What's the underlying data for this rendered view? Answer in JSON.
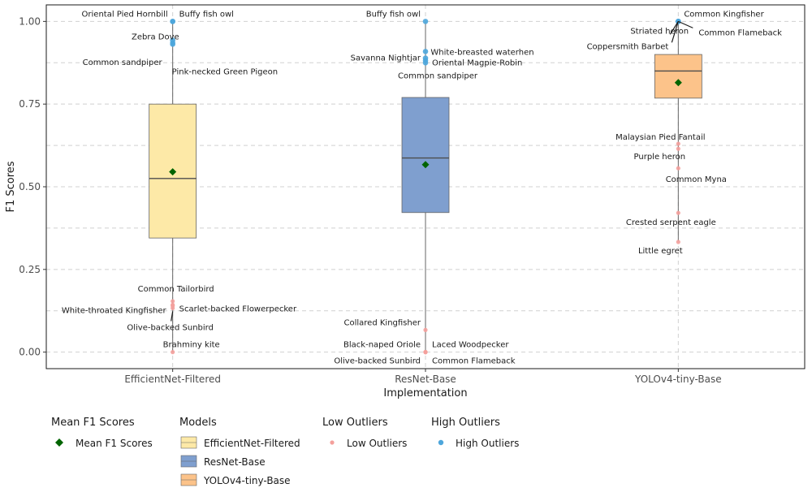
{
  "chart_data": {
    "type": "box",
    "xlabel": "Implementation",
    "ylabel": "F1 Scores",
    "ylim": [
      -0.05,
      1.05
    ],
    "yticks": [
      0.0,
      0.25,
      0.5,
      0.75,
      1.0
    ],
    "ytick_labels": [
      "0.00",
      "0.25",
      "0.50",
      "0.75",
      "1.00"
    ],
    "grid": "dashed",
    "categories": [
      "EfficientNet-Filtered",
      "ResNet-Base",
      "YOLOv4-tiny-Base"
    ],
    "colors": {
      "EfficientNet-Filtered": "#fde9a7",
      "ResNet-Base": "#7f9fcf",
      "YOLOv4-tiny-Base": "#fcc38a",
      "mean": "#006400",
      "low_outlier": "#f4a09c",
      "high_outlier": "#4da6db",
      "median_line": "#4d4d4d"
    },
    "boxes": [
      {
        "category": "EfficientNet-Filtered",
        "whisker_low": 0.0,
        "q1": 0.345,
        "median": 0.525,
        "q3": 0.75,
        "whisker_high": 1.0,
        "mean": 0.545
      },
      {
        "category": "ResNet-Base",
        "whisker_low": 0.0,
        "q1": 0.422,
        "median": 0.587,
        "q3": 0.77,
        "whisker_high": 1.0,
        "mean": 0.567
      },
      {
        "category": "YOLOv4-tiny-Base",
        "whisker_low": 0.335,
        "q1": 0.768,
        "median": 0.85,
        "q3": 0.9,
        "whisker_high": 1.0,
        "mean": 0.815
      }
    ],
    "high_outliers": [
      {
        "category": "EfficientNet-Filtered",
        "species": "Oriental Pied Hornbill",
        "value": 1.0
      },
      {
        "category": "EfficientNet-Filtered",
        "species": "Buffy fish owl",
        "value": 1.0
      },
      {
        "category": "EfficientNet-Filtered",
        "species": "Zebra Dove",
        "value": 0.943
      },
      {
        "category": "EfficientNet-Filtered",
        "species": "Common sandpiper",
        "value": 0.935
      },
      {
        "category": "EfficientNet-Filtered",
        "species": "Pink-necked Green Pigeon",
        "value": 0.931
      },
      {
        "category": "ResNet-Base",
        "species": "Buffy fish owl",
        "value": 1.0
      },
      {
        "category": "ResNet-Base",
        "species": "White-breasted waterhen",
        "value": 0.909
      },
      {
        "category": "ResNet-Base",
        "species": "Savanna Nightjar",
        "value": 0.889
      },
      {
        "category": "ResNet-Base",
        "species": "Oriental Magpie-Robin",
        "value": 0.882
      },
      {
        "category": "ResNet-Base",
        "species": "Common sandpiper",
        "value": 0.875
      },
      {
        "category": "YOLOv4-tiny-Base",
        "species": "Common Kingfisher",
        "value": 1.0
      },
      {
        "category": "YOLOv4-tiny-Base",
        "species": "Striated heron",
        "value": 1.0
      },
      {
        "category": "YOLOv4-tiny-Base",
        "species": "Common Flameback",
        "value": 1.0
      },
      {
        "category": "YOLOv4-tiny-Base",
        "species": "Coppersmith Barbet",
        "value": 1.0
      }
    ],
    "low_outliers": [
      {
        "category": "EfficientNet-Filtered",
        "species": "Common Tailorbird",
        "value": 0.154
      },
      {
        "category": "EfficientNet-Filtered",
        "species": "White-throated Kingfisher",
        "value": 0.143
      },
      {
        "category": "EfficientNet-Filtered",
        "species": "Scarlet-backed Flowerpecker",
        "value": 0.14
      },
      {
        "category": "EfficientNet-Filtered",
        "species": "Olive-backed Sunbird",
        "value": 0.133
      },
      {
        "category": "EfficientNet-Filtered",
        "species": "Brahminy kite",
        "value": 0.0
      },
      {
        "category": "ResNet-Base",
        "species": "Collared Kingfisher",
        "value": 0.067
      },
      {
        "category": "ResNet-Base",
        "species": "Black-naped Oriole",
        "value": 0.0
      },
      {
        "category": "ResNet-Base",
        "species": "Laced Woodpecker",
        "value": 0.0
      },
      {
        "category": "ResNet-Base",
        "species": "Olive-backed Sunbird",
        "value": 0.0
      },
      {
        "category": "ResNet-Base",
        "species": "Common Flameback",
        "value": 0.0
      },
      {
        "category": "YOLOv4-tiny-Base",
        "species": "Malaysian Pied Fantail",
        "value": 0.63
      },
      {
        "category": "YOLOv4-tiny-Base",
        "species": "Purple heron",
        "value": 0.615
      },
      {
        "category": "YOLOv4-tiny-Base",
        "species": "Common Myna",
        "value": 0.556
      },
      {
        "category": "YOLOv4-tiny-Base",
        "species": "Crested serpent eagle",
        "value": 0.421
      },
      {
        "category": "YOLOv4-tiny-Base",
        "species": "Little egret",
        "value": 0.333
      }
    ]
  },
  "legend": {
    "mean": {
      "title": "Mean F1 Scores",
      "item": "Mean F1 Scores"
    },
    "models": {
      "title": "Models",
      "items": [
        "EfficientNet-Filtered",
        "ResNet-Base",
        "YOLOv4-tiny-Base"
      ]
    },
    "low": {
      "title": "Low Outliers",
      "item": "Low Outliers"
    },
    "high": {
      "title": "High Outliers",
      "item": "High Outliers"
    }
  }
}
